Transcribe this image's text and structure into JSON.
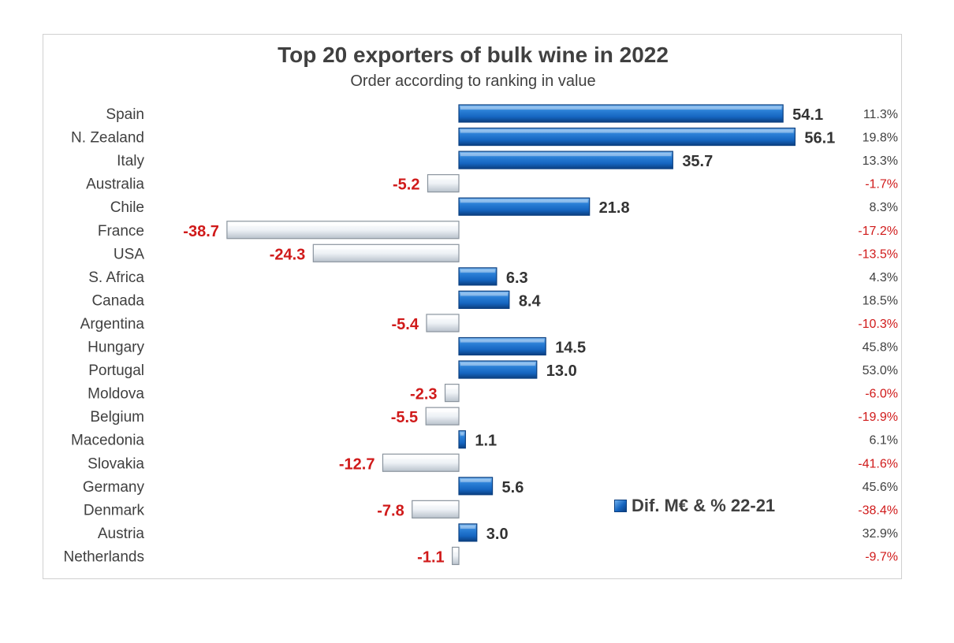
{
  "chart_data": {
    "type": "bar",
    "orientation": "horizontal",
    "title": "Top 20 exporters of bulk wine in 2022",
    "subtitle": "Order according to ranking in value",
    "categories": [
      "Spain",
      "N. Zealand",
      "Italy",
      "Australia",
      "Chile",
      "France",
      "USA",
      "S. Africa",
      "Canada",
      "Argentina",
      "Hungary",
      "Portugal",
      "Moldova",
      "Belgium",
      "Macedonia",
      "Slovakia",
      "Germany",
      "Denmark",
      "Austria",
      "Netherlands"
    ],
    "series": [
      {
        "name": "Dif. M€ & % 22-21",
        "values": [
          54.1,
          56.1,
          35.7,
          -5.2,
          21.8,
          -38.7,
          -24.3,
          6.3,
          8.4,
          -5.4,
          14.5,
          13.0,
          -2.3,
          -5.5,
          1.1,
          -12.7,
          5.6,
          -7.8,
          3.0,
          -1.1
        ],
        "value_labels": [
          "54.1",
          "56.1",
          "35.7",
          "-5.2",
          "21.8",
          "-38.7",
          "-24.3",
          "6.3",
          "8.4",
          "-5.4",
          "14.5",
          "13.0",
          "-2.3",
          "-5.5",
          "1.1",
          "-12.7",
          "5.6",
          "-7.8",
          "3.0",
          "-1.1"
        ]
      }
    ],
    "percent_labels": [
      "11.3%",
      "19.8%",
      "13.3%",
      "-1.7%",
      "8.3%",
      "-17.2%",
      "-13.5%",
      "4.3%",
      "18.5%",
      "-10.3%",
      "45.8%",
      "53.0%",
      "-6.0%",
      "-19.9%",
      "6.1%",
      "-41.6%",
      "45.6%",
      "-38.4%",
      "32.9%",
      "-9.7%"
    ],
    "xlim": [
      -40,
      60
    ],
    "grid": false,
    "legend": {
      "label": "Dif. M€ & % 22-21",
      "placement": "bottom-right"
    },
    "colors": {
      "positive": "#1565c0",
      "negative": "#e4e9ee",
      "negative_text": "#d01a1a"
    }
  }
}
